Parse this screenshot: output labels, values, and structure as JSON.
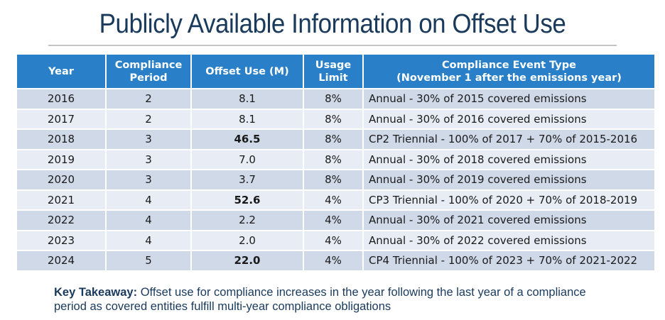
{
  "title": "Publicly Available Information on Offset Use",
  "table": {
    "headers": [
      {
        "line1": "Year",
        "line2": ""
      },
      {
        "line1": "Compliance",
        "line2": "Period"
      },
      {
        "line1": "Offset Use (M)",
        "line2": ""
      },
      {
        "line1": "Usage",
        "line2": "Limit"
      },
      {
        "line1": "Compliance Event Type",
        "line2": "(November 1 after the emissions year)"
      }
    ],
    "rows": [
      {
        "year": "2016",
        "period": "2",
        "offset": "8.1",
        "offset_bold": false,
        "limit": "8%",
        "event": "Annual - 30% of 2015 covered emissions"
      },
      {
        "year": "2017",
        "period": "2",
        "offset": "8.1",
        "offset_bold": false,
        "limit": "8%",
        "event": "Annual - 30% of 2016 covered emissions"
      },
      {
        "year": "2018",
        "period": "3",
        "offset": "46.5",
        "offset_bold": true,
        "limit": "8%",
        "event": "CP2 Triennial - 100% of 2017 + 70% of 2015-2016"
      },
      {
        "year": "2019",
        "period": "3",
        "offset": "7.0",
        "offset_bold": false,
        "limit": "8%",
        "event": "Annual - 30% of 2018 covered emissions"
      },
      {
        "year": "2020",
        "period": "3",
        "offset": "3.7",
        "offset_bold": false,
        "limit": "8%",
        "event": "Annual - 30% of 2019 covered emissions"
      },
      {
        "year": "2021",
        "period": "4",
        "offset": "52.6",
        "offset_bold": true,
        "limit": "4%",
        "event": "CP3 Triennial - 100% of 2020 + 70% of 2018-2019"
      },
      {
        "year": "2022",
        "period": "4",
        "offset": "2.2",
        "offset_bold": false,
        "limit": "4%",
        "event": "Annual - 30% of 2021 covered emissions"
      },
      {
        "year": "2023",
        "period": "4",
        "offset": "2.0",
        "offset_bold": false,
        "limit": "4%",
        "event": "Annual - 30% of 2022 covered emissions"
      },
      {
        "year": "2024",
        "period": "5",
        "offset": "22.0",
        "offset_bold": true,
        "limit": "4%",
        "event": "CP4 Triennial - 100% of 2023 + 70% of 2021-2022"
      }
    ]
  },
  "takeaway": {
    "label": "Key Takeaway:",
    "text": " Offset use for compliance increases in the year following the last year of a compliance period as covered entities fulfill multi-year compliance obligations"
  },
  "colors": {
    "header_bg": "#2980c8",
    "row_odd": "#cfd9e8",
    "row_even": "#e8ecf5",
    "title": "#1a3a5c"
  }
}
